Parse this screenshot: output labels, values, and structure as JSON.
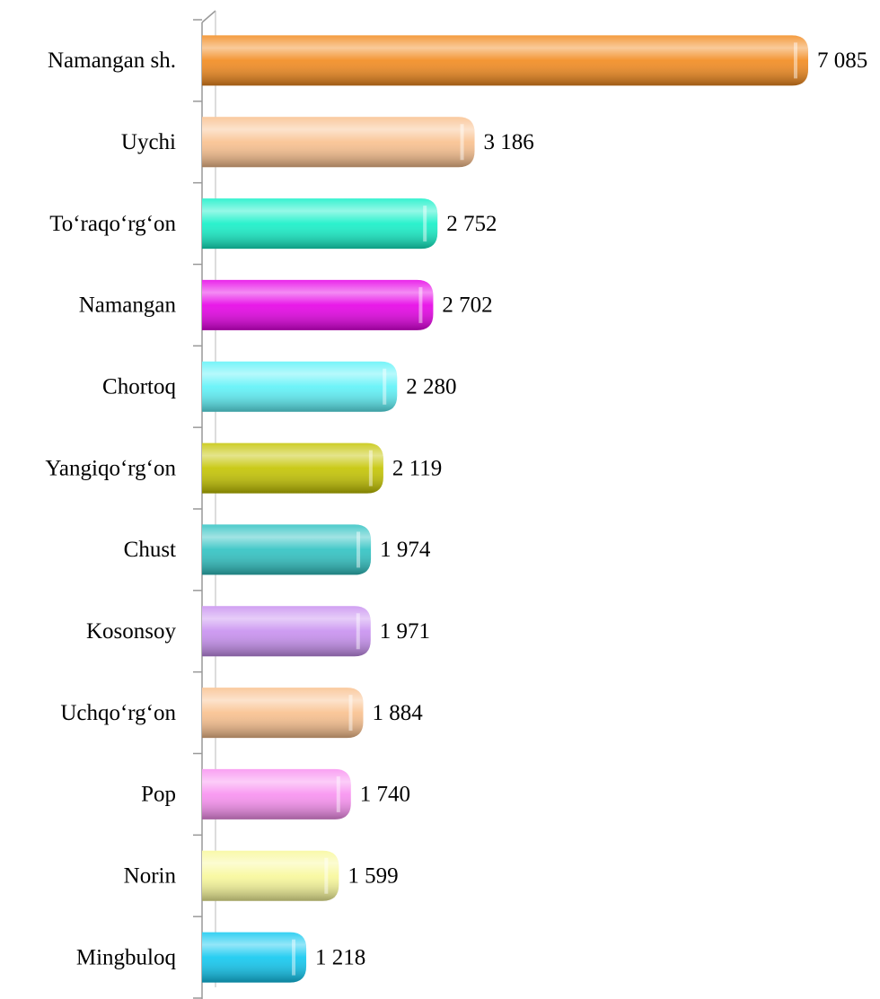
{
  "chart_data": {
    "type": "bar",
    "orientation": "horizontal",
    "categories": [
      "Namangan sh.",
      "Uychi",
      "To‘raqo‘rg‘on",
      "Namangan",
      "Chortoq",
      "Yangiqo‘rg‘on",
      "Chust",
      "Kosonsoy",
      "Uchqo‘rg‘on",
      "Pop",
      "Norin",
      "Mingbuloq"
    ],
    "values": [
      7085,
      3186,
      2752,
      2702,
      2280,
      2119,
      1974,
      1971,
      1884,
      1740,
      1599,
      1218
    ],
    "value_labels": [
      "7 085",
      "3 186",
      "2 752",
      "2 702",
      "2 280",
      "2 119",
      "1 974",
      "1 971",
      "1 884",
      "1 740",
      "1 599",
      "1 218"
    ],
    "colors": [
      "#f28a1e",
      "#f9c08e",
      "#14f0c8",
      "#e600e6",
      "#5ef2f8",
      "#c4c400",
      "#2fc2c2",
      "#c890f0",
      "#f9c08e",
      "#f890f0",
      "#f8f89a",
      "#10c8f0"
    ]
  }
}
